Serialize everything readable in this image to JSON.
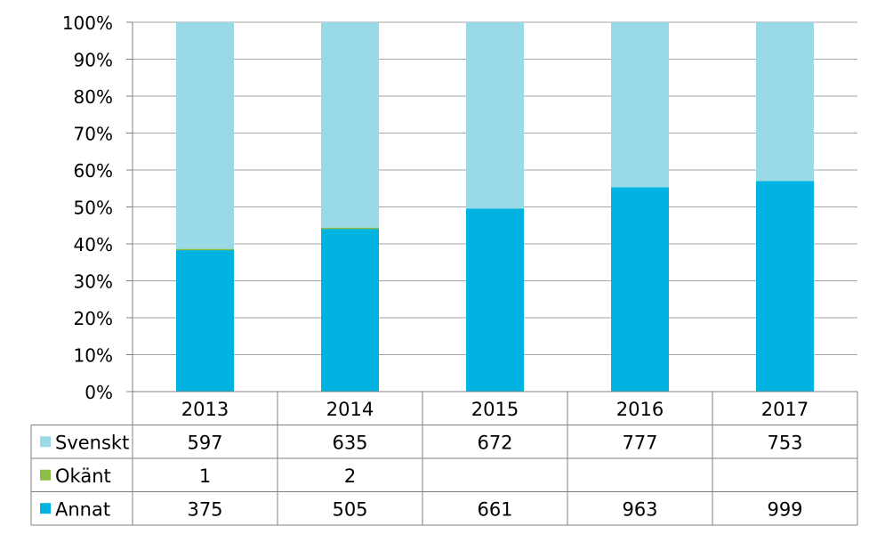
{
  "chart_data": {
    "type": "bar",
    "stacked": true,
    "normalized": true,
    "categories": [
      "2013",
      "2014",
      "2015",
      "2016",
      "2017"
    ],
    "series": [
      {
        "name": "Annat",
        "values": [
          375,
          505,
          661,
          963,
          999
        ],
        "color": "#00b3e0"
      },
      {
        "name": "Okänt",
        "values": [
          1,
          2,
          null,
          null,
          null
        ],
        "color": "#8cbd45"
      },
      {
        "name": "Svenskt",
        "values": [
          597,
          635,
          672,
          777,
          753
        ],
        "color": "#99dae6"
      }
    ],
    "y_ticks": [
      "0%",
      "10%",
      "20%",
      "30%",
      "40%",
      "50%",
      "60%",
      "70%",
      "80%",
      "90%",
      "100%"
    ],
    "ylim": [
      0,
      100
    ],
    "grid": true,
    "legend": "data-table-rows",
    "table_rows": [
      "Svenskt",
      "Okänt",
      "Annat"
    ]
  }
}
